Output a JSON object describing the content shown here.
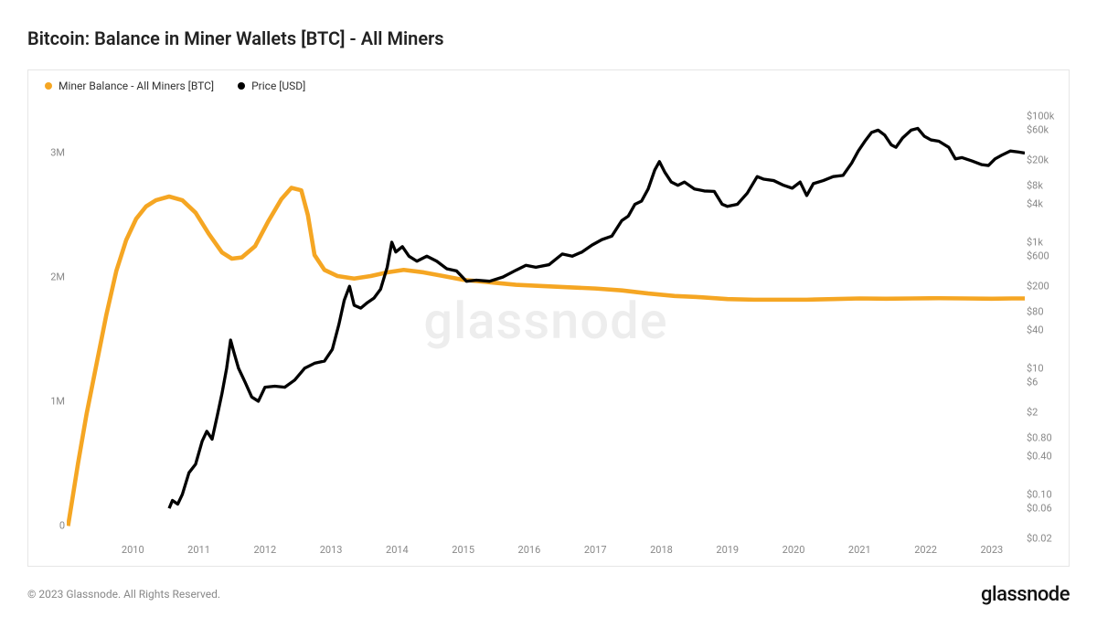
{
  "title": "Bitcoin: Balance in Miner Wallets [BTC] - All Miners",
  "watermark": "glassnode",
  "footer": "© 2023 Glassnode. All Rights Reserved.",
  "brand": "glassnode",
  "legend": [
    {
      "label": "Miner Balance - All Miners [BTC]",
      "color": "#f5a623"
    },
    {
      "label": "Price [USD]",
      "color": "#000000"
    }
  ],
  "chart": {
    "type": "line",
    "background_color": "#ffffff",
    "border_color": "#e6e6e6",
    "x_axis": {
      "min_year": 2009.0,
      "max_year": 2023.5,
      "ticks": [
        2010,
        2011,
        2012,
        2013,
        2014,
        2015,
        2016,
        2017,
        2018,
        2019,
        2020,
        2021,
        2022,
        2023
      ]
    },
    "y_left": {
      "scale": "linear",
      "min": -100000,
      "max": 3400000,
      "ticks": [
        {
          "v": 0,
          "label": "0"
        },
        {
          "v": 1000000,
          "label": "1M"
        },
        {
          "v": 2000000,
          "label": "2M"
        },
        {
          "v": 3000000,
          "label": "3M"
        }
      ],
      "label_color": "#888888",
      "label_fontsize": 11
    },
    "y_right": {
      "scale": "log",
      "min": 0.02,
      "max": 160000,
      "ticks": [
        {
          "v": 0.02,
          "label": "$0.02"
        },
        {
          "v": 0.06,
          "label": "$0.06"
        },
        {
          "v": 0.1,
          "label": "$0.10"
        },
        {
          "v": 0.4,
          "label": "$0.40"
        },
        {
          "v": 0.8,
          "label": "$0.80"
        },
        {
          "v": 2,
          "label": "$2"
        },
        {
          "v": 6,
          "label": "$6"
        },
        {
          "v": 10,
          "label": "$10"
        },
        {
          "v": 40,
          "label": "$40"
        },
        {
          "v": 80,
          "label": "$80"
        },
        {
          "v": 200,
          "label": "$200"
        },
        {
          "v": 600,
          "label": "$600"
        },
        {
          "v": 1000,
          "label": "$1k"
        },
        {
          "v": 4000,
          "label": "$4k"
        },
        {
          "v": 8000,
          "label": "$8k"
        },
        {
          "v": 20000,
          "label": "$20k"
        },
        {
          "v": 60000,
          "label": "$60k"
        },
        {
          "v": 100000,
          "label": "$100k"
        }
      ],
      "label_color": "#888888",
      "label_fontsize": 11
    },
    "series": [
      {
        "name": "miner_balance",
        "axis": "left",
        "color": "#f5a623",
        "line_width": 2.2,
        "points": [
          [
            2009.02,
            0
          ],
          [
            2009.08,
            200000
          ],
          [
            2009.17,
            500000
          ],
          [
            2009.3,
            900000
          ],
          [
            2009.45,
            1300000
          ],
          [
            2009.6,
            1700000
          ],
          [
            2009.75,
            2050000
          ],
          [
            2009.9,
            2300000
          ],
          [
            2010.05,
            2470000
          ],
          [
            2010.2,
            2570000
          ],
          [
            2010.35,
            2620000
          ],
          [
            2010.55,
            2650000
          ],
          [
            2010.75,
            2620000
          ],
          [
            2010.95,
            2520000
          ],
          [
            2011.15,
            2350000
          ],
          [
            2011.35,
            2200000
          ],
          [
            2011.5,
            2150000
          ],
          [
            2011.65,
            2160000
          ],
          [
            2011.85,
            2250000
          ],
          [
            2012.05,
            2450000
          ],
          [
            2012.25,
            2630000
          ],
          [
            2012.4,
            2720000
          ],
          [
            2012.55,
            2700000
          ],
          [
            2012.65,
            2500000
          ],
          [
            2012.75,
            2180000
          ],
          [
            2012.9,
            2060000
          ],
          [
            2013.1,
            2010000
          ],
          [
            2013.35,
            1990000
          ],
          [
            2013.6,
            2010000
          ],
          [
            2013.85,
            2040000
          ],
          [
            2014.1,
            2060000
          ],
          [
            2014.4,
            2040000
          ],
          [
            2014.7,
            2010000
          ],
          [
            2015.0,
            1980000
          ],
          [
            2015.4,
            1960000
          ],
          [
            2015.8,
            1940000
          ],
          [
            2016.2,
            1930000
          ],
          [
            2016.6,
            1920000
          ],
          [
            2017.0,
            1910000
          ],
          [
            2017.4,
            1895000
          ],
          [
            2017.8,
            1870000
          ],
          [
            2018.2,
            1850000
          ],
          [
            2018.6,
            1840000
          ],
          [
            2019.0,
            1825000
          ],
          [
            2019.4,
            1820000
          ],
          [
            2019.8,
            1820000
          ],
          [
            2020.2,
            1820000
          ],
          [
            2020.6,
            1825000
          ],
          [
            2021.0,
            1830000
          ],
          [
            2021.4,
            1828000
          ],
          [
            2021.8,
            1830000
          ],
          [
            2022.2,
            1832000
          ],
          [
            2022.6,
            1830000
          ],
          [
            2023.0,
            1828000
          ],
          [
            2023.3,
            1830000
          ],
          [
            2023.5,
            1830000
          ]
        ]
      },
      {
        "name": "price_usd",
        "axis": "right",
        "color": "#000000",
        "line_width": 1.6,
        "points": [
          [
            2010.55,
            0.06
          ],
          [
            2010.6,
            0.08
          ],
          [
            2010.68,
            0.07
          ],
          [
            2010.75,
            0.1
          ],
          [
            2010.85,
            0.22
          ],
          [
            2010.95,
            0.3
          ],
          [
            2011.05,
            0.7
          ],
          [
            2011.12,
            1.0
          ],
          [
            2011.2,
            0.75
          ],
          [
            2011.28,
            1.8
          ],
          [
            2011.35,
            4.0
          ],
          [
            2011.42,
            10
          ],
          [
            2011.48,
            28
          ],
          [
            2011.53,
            18
          ],
          [
            2011.6,
            10
          ],
          [
            2011.7,
            6
          ],
          [
            2011.8,
            3.5
          ],
          [
            2011.9,
            3.0
          ],
          [
            2012.0,
            5.0
          ],
          [
            2012.15,
            5.2
          ],
          [
            2012.3,
            5.0
          ],
          [
            2012.45,
            6.5
          ],
          [
            2012.6,
            10
          ],
          [
            2012.75,
            12
          ],
          [
            2012.9,
            13
          ],
          [
            2013.02,
            20
          ],
          [
            2013.12,
            50
          ],
          [
            2013.2,
            120
          ],
          [
            2013.28,
            200
          ],
          [
            2013.35,
            100
          ],
          [
            2013.45,
            90
          ],
          [
            2013.55,
            110
          ],
          [
            2013.65,
            130
          ],
          [
            2013.75,
            180
          ],
          [
            2013.85,
            400
          ],
          [
            2013.92,
            1000
          ],
          [
            2013.98,
            700
          ],
          [
            2014.08,
            850
          ],
          [
            2014.18,
            600
          ],
          [
            2014.3,
            500
          ],
          [
            2014.45,
            600
          ],
          [
            2014.6,
            500
          ],
          [
            2014.75,
            380
          ],
          [
            2014.9,
            350
          ],
          [
            2015.05,
            240
          ],
          [
            2015.2,
            250
          ],
          [
            2015.4,
            240
          ],
          [
            2015.6,
            280
          ],
          [
            2015.8,
            360
          ],
          [
            2015.95,
            430
          ],
          [
            2016.1,
            400
          ],
          [
            2016.3,
            440
          ],
          [
            2016.5,
            650
          ],
          [
            2016.65,
            600
          ],
          [
            2016.8,
            700
          ],
          [
            2016.95,
            900
          ],
          [
            2017.1,
            1100
          ],
          [
            2017.25,
            1250
          ],
          [
            2017.4,
            2200
          ],
          [
            2017.5,
            2600
          ],
          [
            2017.6,
            4000
          ],
          [
            2017.7,
            4500
          ],
          [
            2017.8,
            7000
          ],
          [
            2017.9,
            14000
          ],
          [
            2017.97,
            19000
          ],
          [
            2018.05,
            13000
          ],
          [
            2018.15,
            9000
          ],
          [
            2018.25,
            8000
          ],
          [
            2018.35,
            9000
          ],
          [
            2018.5,
            7000
          ],
          [
            2018.65,
            6500
          ],
          [
            2018.8,
            6400
          ],
          [
            2018.92,
            4000
          ],
          [
            2019.0,
            3700
          ],
          [
            2019.15,
            4000
          ],
          [
            2019.3,
            6000
          ],
          [
            2019.45,
            11000
          ],
          [
            2019.55,
            10000
          ],
          [
            2019.7,
            9500
          ],
          [
            2019.85,
            8000
          ],
          [
            2019.98,
            7200
          ],
          [
            2020.1,
            9000
          ],
          [
            2020.2,
            5500
          ],
          [
            2020.3,
            8500
          ],
          [
            2020.45,
            9500
          ],
          [
            2020.6,
            11000
          ],
          [
            2020.75,
            11500
          ],
          [
            2020.88,
            18000
          ],
          [
            2020.98,
            28000
          ],
          [
            2021.08,
            40000
          ],
          [
            2021.18,
            55000
          ],
          [
            2021.28,
            60000
          ],
          [
            2021.38,
            50000
          ],
          [
            2021.48,
            35000
          ],
          [
            2021.55,
            32000
          ],
          [
            2021.65,
            45000
          ],
          [
            2021.78,
            60000
          ],
          [
            2021.88,
            64000
          ],
          [
            2021.98,
            48000
          ],
          [
            2022.08,
            42000
          ],
          [
            2022.2,
            40000
          ],
          [
            2022.35,
            32000
          ],
          [
            2022.45,
            21000
          ],
          [
            2022.55,
            22000
          ],
          [
            2022.7,
            19500
          ],
          [
            2022.85,
            17000
          ],
          [
            2022.95,
            16500
          ],
          [
            2023.05,
            21000
          ],
          [
            2023.15,
            24000
          ],
          [
            2023.28,
            28000
          ],
          [
            2023.4,
            27000
          ],
          [
            2023.5,
            26000
          ]
        ]
      }
    ]
  }
}
